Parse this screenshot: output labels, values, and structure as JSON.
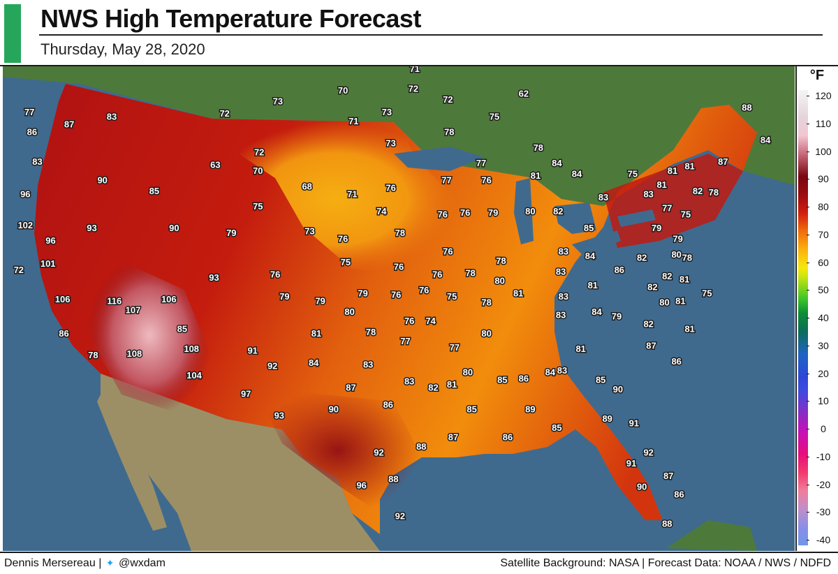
{
  "header": {
    "title": "NWS High Temperature Forecast",
    "subtitle": "Thursday, May 28, 2020",
    "accent_color": "#26a65b"
  },
  "legend": {
    "unit": "°F",
    "ticks": [
      120,
      110,
      100,
      90,
      80,
      70,
      60,
      50,
      40,
      30,
      20,
      10,
      0,
      -10,
      -20,
      -30,
      -40
    ],
    "min": -40,
    "max": 120
  },
  "footer": {
    "author": "Dennis Mersereau",
    "separator": "|",
    "handle_icon": "twitter-bird-icon",
    "handle": "@wxdam",
    "source": "Satellite Background: NASA | Forecast Data: NOAA / NWS / NDFD"
  },
  "map": {
    "ocean_color": "#3f6a8e",
    "canada_color": "#4d7a3a",
    "mexico_color": "#9c8f66",
    "temperatures": [
      {
        "v": 77,
        "lon": -123.6,
        "lat": 47.8
      },
      {
        "v": 83,
        "lon": -117.4,
        "lat": 47.5
      },
      {
        "v": 87,
        "lon": -120.6,
        "lat": 47.0
      },
      {
        "v": 86,
        "lon": -123.4,
        "lat": 46.5
      },
      {
        "v": 83,
        "lon": -123.0,
        "lat": 44.6
      },
      {
        "v": 96,
        "lon": -123.9,
        "lat": 42.5
      },
      {
        "v": 90,
        "lon": -118.1,
        "lat": 43.4
      },
      {
        "v": 85,
        "lon": -114.2,
        "lat": 42.7
      },
      {
        "v": 102,
        "lon": -123.9,
        "lat": 40.5
      },
      {
        "v": 93,
        "lon": -118.9,
        "lat": 40.3
      },
      {
        "v": 96,
        "lon": -122.0,
        "lat": 39.5
      },
      {
        "v": 90,
        "lon": -112.7,
        "lat": 40.3
      },
      {
        "v": 101,
        "lon": -122.2,
        "lat": 38.0
      },
      {
        "v": 72,
        "lon": -124.4,
        "lat": 37.6
      },
      {
        "v": 106,
        "lon": -121.1,
        "lat": 35.7
      },
      {
        "v": 116,
        "lon": -117.2,
        "lat": 35.6
      },
      {
        "v": 107,
        "lon": -115.8,
        "lat": 35.0
      },
      {
        "v": 106,
        "lon": -113.1,
        "lat": 35.7
      },
      {
        "v": 85,
        "lon": -112.1,
        "lat": 33.8
      },
      {
        "v": 86,
        "lon": -121.0,
        "lat": 33.5
      },
      {
        "v": 78,
        "lon": -118.8,
        "lat": 32.1
      },
      {
        "v": 108,
        "lon": -115.7,
        "lat": 32.2
      },
      {
        "v": 108,
        "lon": -111.4,
        "lat": 32.5
      },
      {
        "v": 104,
        "lon": -111.2,
        "lat": 30.8
      },
      {
        "v": 72,
        "lon": -108.9,
        "lat": 47.7
      },
      {
        "v": 73,
        "lon": -104.9,
        "lat": 48.5
      },
      {
        "v": 72,
        "lon": -106.3,
        "lat": 45.2
      },
      {
        "v": 63,
        "lon": -109.6,
        "lat": 44.4
      },
      {
        "v": 70,
        "lon": -106.4,
        "lat": 44.0
      },
      {
        "v": 68,
        "lon": -102.7,
        "lat": 43.0
      },
      {
        "v": 75,
        "lon": -106.4,
        "lat": 41.7
      },
      {
        "v": 79,
        "lon": -108.4,
        "lat": 40.0
      },
      {
        "v": 73,
        "lon": -102.5,
        "lat": 40.1
      },
      {
        "v": 93,
        "lon": -109.7,
        "lat": 37.1
      },
      {
        "v": 76,
        "lon": -105.1,
        "lat": 37.3
      },
      {
        "v": 79,
        "lon": -104.4,
        "lat": 35.9
      },
      {
        "v": 91,
        "lon": -106.8,
        "lat": 32.4
      },
      {
        "v": 70,
        "lon": -100.0,
        "lat": 49.2
      },
      {
        "v": 71,
        "lon": -99.2,
        "lat": 47.2
      },
      {
        "v": 73,
        "lon": -96.7,
        "lat": 47.8
      },
      {
        "v": 71,
        "lon": -94.6,
        "lat": 50.6
      },
      {
        "v": 72,
        "lon": -94.7,
        "lat": 49.3
      },
      {
        "v": 72,
        "lon": -92.1,
        "lat": 48.6
      },
      {
        "v": 73,
        "lon": -96.4,
        "lat": 45.8
      },
      {
        "v": 78,
        "lon": -92.0,
        "lat": 46.5
      },
      {
        "v": 75,
        "lon": -88.6,
        "lat": 47.5
      },
      {
        "v": 62,
        "lon": -86.4,
        "lat": 49.0
      },
      {
        "v": 71,
        "lon": -99.3,
        "lat": 42.5
      },
      {
        "v": 76,
        "lon": -96.4,
        "lat": 42.9
      },
      {
        "v": 77,
        "lon": -92.2,
        "lat": 43.4
      },
      {
        "v": 77,
        "lon": -89.6,
        "lat": 44.5
      },
      {
        "v": 76,
        "lon": -89.2,
        "lat": 43.4
      },
      {
        "v": 74,
        "lon": -97.1,
        "lat": 41.4
      },
      {
        "v": 76,
        "lon": -100.0,
        "lat": 39.6
      },
      {
        "v": 78,
        "lon": -95.7,
        "lat": 40.0
      },
      {
        "v": 76,
        "lon": -92.5,
        "lat": 41.2
      },
      {
        "v": 76,
        "lon": -90.8,
        "lat": 41.3
      },
      {
        "v": 79,
        "lon": -88.7,
        "lat": 41.3
      },
      {
        "v": 80,
        "lon": -85.9,
        "lat": 41.4
      },
      {
        "v": 75,
        "lon": -99.8,
        "lat": 38.1
      },
      {
        "v": 76,
        "lon": -95.8,
        "lat": 37.8
      },
      {
        "v": 76,
        "lon": -92.1,
        "lat": 38.8
      },
      {
        "v": 76,
        "lon": -92.9,
        "lat": 37.3
      },
      {
        "v": 78,
        "lon": -90.4,
        "lat": 37.4
      },
      {
        "v": 78,
        "lon": -88.1,
        "lat": 38.2
      },
      {
        "v": 80,
        "lon": -88.2,
        "lat": 36.9
      },
      {
        "v": 79,
        "lon": -98.5,
        "lat": 36.1
      },
      {
        "v": 76,
        "lon": -96.0,
        "lat": 36.0
      },
      {
        "v": 76,
        "lon": -93.9,
        "lat": 36.3
      },
      {
        "v": 75,
        "lon": -91.8,
        "lat": 35.9
      },
      {
        "v": 79,
        "lon": -101.7,
        "lat": 35.6
      },
      {
        "v": 80,
        "lon": -99.5,
        "lat": 34.9
      },
      {
        "v": 81,
        "lon": -102.0,
        "lat": 33.5
      },
      {
        "v": 78,
        "lon": -97.9,
        "lat": 33.6
      },
      {
        "v": 76,
        "lon": -95.0,
        "lat": 34.3
      },
      {
        "v": 74,
        "lon": -93.4,
        "lat": 34.3
      },
      {
        "v": 77,
        "lon": -95.3,
        "lat": 33.0
      },
      {
        "v": 77,
        "lon": -91.6,
        "lat": 32.6
      },
      {
        "v": 78,
        "lon": -89.2,
        "lat": 35.5
      },
      {
        "v": 80,
        "lon": -89.2,
        "lat": 33.5
      },
      {
        "v": 81,
        "lon": -86.8,
        "lat": 36.1
      },
      {
        "v": 92,
        "lon": -105.3,
        "lat": 31.4
      },
      {
        "v": 84,
        "lon": -102.2,
        "lat": 31.6
      },
      {
        "v": 83,
        "lon": -98.1,
        "lat": 31.5
      },
      {
        "v": 83,
        "lon": -95.0,
        "lat": 30.4
      },
      {
        "v": 82,
        "lon": -93.2,
        "lat": 30.0
      },
      {
        "v": 81,
        "lon": -91.8,
        "lat": 30.2
      },
      {
        "v": 80,
        "lon": -90.6,
        "lat": 31.0
      },
      {
        "v": 97,
        "lon": -107.3,
        "lat": 29.6
      },
      {
        "v": 87,
        "lon": -99.4,
        "lat": 30.0
      },
      {
        "v": 86,
        "lon": -96.6,
        "lat": 28.9
      },
      {
        "v": 93,
        "lon": -104.8,
        "lat": 28.2
      },
      {
        "v": 90,
        "lon": -100.7,
        "lat": 28.6
      },
      {
        "v": 85,
        "lon": -90.3,
        "lat": 28.6
      },
      {
        "v": 85,
        "lon": -88.0,
        "lat": 30.5
      },
      {
        "v": 86,
        "lon": -86.4,
        "lat": 30.6
      },
      {
        "v": 84,
        "lon": -84.4,
        "lat": 31.0
      },
      {
        "v": 89,
        "lon": -85.9,
        "lat": 28.6
      },
      {
        "v": 87,
        "lon": -91.7,
        "lat": 26.8
      },
      {
        "v": 86,
        "lon": -87.6,
        "lat": 26.8
      },
      {
        "v": 85,
        "lon": -83.9,
        "lat": 27.4
      },
      {
        "v": 92,
        "lon": -97.3,
        "lat": 25.8
      },
      {
        "v": 88,
        "lon": -94.1,
        "lat": 26.2
      },
      {
        "v": 96,
        "lon": -98.6,
        "lat": 23.7
      },
      {
        "v": 88,
        "lon": -96.2,
        "lat": 24.1
      },
      {
        "v": 92,
        "lon": -95.7,
        "lat": 21.7
      },
      {
        "v": 78,
        "lon": -85.3,
        "lat": 45.5
      },
      {
        "v": 84,
        "lon": -83.9,
        "lat": 44.5
      },
      {
        "v": 81,
        "lon": -85.5,
        "lat": 43.7
      },
      {
        "v": 84,
        "lon": -82.4,
        "lat": 43.8
      },
      {
        "v": 82,
        "lon": -83.8,
        "lat": 41.4
      },
      {
        "v": 83,
        "lon": -80.4,
        "lat": 42.3
      },
      {
        "v": 75,
        "lon": -78.2,
        "lat": 43.8
      },
      {
        "v": 85,
        "lon": -81.5,
        "lat": 40.3
      },
      {
        "v": 83,
        "lon": -83.4,
        "lat": 38.8
      },
      {
        "v": 84,
        "lon": -81.4,
        "lat": 38.5
      },
      {
        "v": 83,
        "lon": -83.6,
        "lat": 37.5
      },
      {
        "v": 81,
        "lon": -81.2,
        "lat": 36.6
      },
      {
        "v": 86,
        "lon": -79.2,
        "lat": 37.6
      },
      {
        "v": 83,
        "lon": -83.4,
        "lat": 35.9
      },
      {
        "v": 83,
        "lon": -83.6,
        "lat": 34.7
      },
      {
        "v": 84,
        "lon": -80.9,
        "lat": 34.9
      },
      {
        "v": 79,
        "lon": -79.4,
        "lat": 34.6
      },
      {
        "v": 81,
        "lon": -82.1,
        "lat": 32.5
      },
      {
        "v": 83,
        "lon": -83.5,
        "lat": 31.1
      },
      {
        "v": 85,
        "lon": -80.6,
        "lat": 30.5
      },
      {
        "v": 90,
        "lon": -79.3,
        "lat": 29.9
      },
      {
        "v": 89,
        "lon": -80.1,
        "lat": 28.0
      },
      {
        "v": 91,
        "lon": -78.1,
        "lat": 27.7
      },
      {
        "v": 92,
        "lon": -77.0,
        "lat": 25.8
      },
      {
        "v": 91,
        "lon": -78.3,
        "lat": 25.1
      },
      {
        "v": 87,
        "lon": -75.5,
        "lat": 24.3
      },
      {
        "v": 90,
        "lon": -77.5,
        "lat": 23.6
      },
      {
        "v": 86,
        "lon": -74.7,
        "lat": 23.1
      },
      {
        "v": 88,
        "lon": -75.6,
        "lat": 21.2
      },
      {
        "v": 87,
        "lon": -76.8,
        "lat": 32.7
      },
      {
        "v": 86,
        "lon": -74.9,
        "lat": 31.7
      },
      {
        "v": 82,
        "lon": -77.0,
        "lat": 34.1
      },
      {
        "v": 80,
        "lon": -75.8,
        "lat": 35.5
      },
      {
        "v": 81,
        "lon": -74.6,
        "lat": 35.6
      },
      {
        "v": 81,
        "lon": -73.9,
        "lat": 33.8
      },
      {
        "v": 75,
        "lon": -72.6,
        "lat": 36.1
      },
      {
        "v": 82,
        "lon": -76.7,
        "lat": 36.5
      },
      {
        "v": 82,
        "lon": -77.5,
        "lat": 38.4
      },
      {
        "v": 82,
        "lon": -75.6,
        "lat": 37.2
      },
      {
        "v": 81,
        "lon": -74.3,
        "lat": 37.0
      },
      {
        "v": 80,
        "lon": -74.9,
        "lat": 38.6
      },
      {
        "v": 78,
        "lon": -74.1,
        "lat": 38.4
      },
      {
        "v": 79,
        "lon": -76.4,
        "lat": 40.3
      },
      {
        "v": 79,
        "lon": -74.8,
        "lat": 39.6
      },
      {
        "v": 77,
        "lon": -75.6,
        "lat": 41.6
      },
      {
        "v": 75,
        "lon": -74.2,
        "lat": 41.2
      },
      {
        "v": 83,
        "lon": -77.0,
        "lat": 42.5
      },
      {
        "v": 81,
        "lon": -76.0,
        "lat": 43.1
      },
      {
        "v": 81,
        "lon": -75.2,
        "lat": 44.0
      },
      {
        "v": 81,
        "lon": -73.9,
        "lat": 44.3
      },
      {
        "v": 82,
        "lon": -73.3,
        "lat": 42.7
      },
      {
        "v": 78,
        "lon": -72.1,
        "lat": 42.6
      },
      {
        "v": 87,
        "lon": -71.4,
        "lat": 44.6
      },
      {
        "v": 88,
        "lon": -69.6,
        "lat": 48.1
      },
      {
        "v": 84,
        "lon": -68.2,
        "lat": 46.0
      }
    ]
  }
}
